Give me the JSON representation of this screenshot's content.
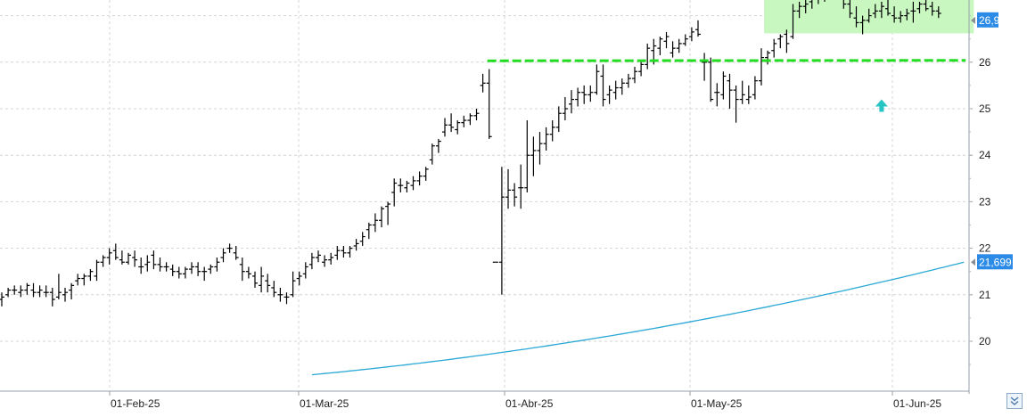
{
  "chart_data": {
    "type": "ohlc",
    "x_tick_labels": [
      "01-Feb-25",
      "01-Mar-25",
      "01-Abr-25",
      "01-May-25",
      "01-Jun-25"
    ],
    "y_tick_labels": [
      "20",
      "21",
      "22",
      "23",
      "24",
      "25",
      "26"
    ],
    "y_range": [
      19.3,
      27.5
    ],
    "grid": true,
    "price_series": {
      "color": "#000000",
      "bars": [
        [
          20.9,
          21.05,
          20.75,
          20.95
        ],
        [
          21.0,
          21.15,
          20.95,
          21.1
        ],
        [
          21.1,
          21.2,
          21.0,
          21.1
        ],
        [
          21.05,
          21.2,
          20.95,
          21.1
        ],
        [
          21.1,
          21.25,
          21.0,
          21.2
        ],
        [
          21.1,
          21.25,
          20.95,
          21.05
        ],
        [
          21.05,
          21.2,
          20.95,
          21.1
        ],
        [
          21.05,
          21.2,
          20.95,
          21.05
        ],
        [
          21.05,
          21.15,
          20.75,
          20.9
        ],
        [
          20.95,
          21.45,
          20.9,
          21.05
        ],
        [
          21.0,
          21.15,
          20.85,
          21.05
        ],
        [
          21.1,
          21.25,
          20.9,
          21.2
        ],
        [
          21.3,
          21.45,
          21.2,
          21.35
        ],
        [
          21.35,
          21.45,
          21.2,
          21.4
        ],
        [
          21.4,
          21.55,
          21.3,
          21.5
        ],
        [
          21.4,
          21.75,
          21.3,
          21.7
        ],
        [
          21.7,
          21.85,
          21.6,
          21.8
        ],
        [
          21.8,
          22.0,
          21.65,
          21.9
        ],
        [
          21.95,
          22.1,
          21.75,
          21.8
        ],
        [
          21.75,
          21.95,
          21.65,
          21.7
        ],
        [
          21.7,
          21.9,
          21.65,
          21.85
        ],
        [
          21.8,
          21.95,
          21.6,
          21.75
        ],
        [
          21.6,
          21.8,
          21.45,
          21.6
        ],
        [
          21.65,
          21.85,
          21.5,
          21.7
        ],
        [
          21.85,
          21.95,
          21.55,
          21.65
        ],
        [
          21.65,
          21.8,
          21.5,
          21.6
        ],
        [
          21.6,
          21.7,
          21.5,
          21.6
        ],
        [
          21.55,
          21.65,
          21.4,
          21.5
        ],
        [
          21.5,
          21.6,
          21.35,
          21.45
        ],
        [
          21.45,
          21.6,
          21.35,
          21.55
        ],
        [
          21.55,
          21.7,
          21.45,
          21.6
        ],
        [
          21.6,
          21.7,
          21.4,
          21.5
        ],
        [
          21.5,
          21.6,
          21.3,
          21.5
        ],
        [
          21.55,
          21.65,
          21.45,
          21.6
        ],
        [
          21.6,
          21.8,
          21.5,
          21.7
        ],
        [
          21.8,
          22.0,
          21.7,
          21.9
        ],
        [
          22.0,
          22.1,
          21.9,
          22.0
        ],
        [
          21.9,
          22.05,
          21.75,
          21.8
        ],
        [
          21.65,
          21.8,
          21.3,
          21.5
        ],
        [
          21.5,
          21.6,
          21.35,
          21.45
        ],
        [
          21.4,
          21.5,
          21.15,
          21.25
        ],
        [
          21.2,
          21.6,
          21.05,
          21.4
        ],
        [
          21.3,
          21.45,
          21.05,
          21.2
        ],
        [
          21.15,
          21.3,
          20.95,
          21.05
        ],
        [
          21.0,
          21.15,
          20.85,
          21.0
        ],
        [
          20.95,
          21.05,
          20.8,
          20.95
        ],
        [
          21.0,
          21.5,
          20.95,
          21.3
        ],
        [
          21.35,
          21.5,
          21.2,
          21.4
        ],
        [
          21.45,
          21.7,
          21.35,
          21.6
        ],
        [
          21.65,
          21.9,
          21.55,
          21.8
        ],
        [
          21.8,
          21.95,
          21.7,
          21.85
        ],
        [
          21.7,
          21.85,
          21.6,
          21.75
        ],
        [
          21.75,
          21.9,
          21.65,
          21.8
        ],
        [
          21.85,
          22.05,
          21.75,
          21.95
        ],
        [
          21.95,
          22.05,
          21.8,
          21.9
        ],
        [
          21.9,
          22.05,
          21.8,
          22.0
        ],
        [
          22.05,
          22.2,
          21.95,
          22.1
        ],
        [
          22.15,
          22.35,
          22.05,
          22.25
        ],
        [
          22.4,
          22.55,
          22.2,
          22.5
        ],
        [
          22.5,
          22.75,
          22.35,
          22.6
        ],
        [
          22.6,
          22.9,
          22.45,
          22.85
        ],
        [
          22.9,
          23.0,
          22.5,
          22.95
        ],
        [
          23.2,
          23.5,
          22.9,
          23.4
        ],
        [
          23.35,
          23.5,
          23.2,
          23.35
        ],
        [
          23.3,
          23.45,
          23.2,
          23.4
        ],
        [
          23.35,
          23.55,
          23.25,
          23.45
        ],
        [
          23.45,
          23.65,
          23.35,
          23.55
        ],
        [
          23.55,
          23.75,
          23.45,
          23.7
        ],
        [
          23.9,
          24.25,
          23.8,
          24.2
        ],
        [
          24.2,
          24.35,
          24.05,
          24.3
        ],
        [
          24.5,
          24.8,
          24.4,
          24.65
        ],
        [
          24.65,
          24.9,
          24.5,
          24.6
        ],
        [
          24.55,
          24.75,
          24.45,
          24.7
        ],
        [
          24.7,
          24.85,
          24.6,
          24.75
        ],
        [
          24.75,
          24.9,
          24.65,
          24.85
        ],
        [
          24.85,
          25.0,
          24.75,
          24.9
        ],
        [
          25.5,
          25.75,
          25.35,
          25.55
        ],
        [
          25.55,
          25.85,
          24.35,
          24.4
        ],
        [
          21.7,
          21.7,
          21.7,
          21.7
        ],
        [
          21.7,
          23.75,
          21.0,
          23.1
        ],
        [
          23.1,
          23.7,
          22.85,
          23.25
        ],
        [
          23.25,
          23.4,
          22.9,
          23.1
        ],
        [
          23.3,
          23.8,
          22.85,
          23.3
        ],
        [
          23.3,
          24.75,
          23.2,
          24.0
        ],
        [
          24.0,
          24.4,
          23.55,
          24.1
        ],
        [
          24.1,
          24.5,
          23.8,
          24.25
        ],
        [
          24.25,
          24.6,
          24.1,
          24.45
        ],
        [
          24.45,
          24.75,
          24.3,
          24.6
        ],
        [
          24.6,
          25.05,
          24.5,
          24.9
        ],
        [
          24.9,
          25.25,
          24.75,
          25.0
        ],
        [
          25.1,
          25.4,
          24.9,
          25.2
        ],
        [
          25.2,
          25.45,
          25.05,
          25.35
        ],
        [
          25.35,
          25.5,
          25.1,
          25.3
        ],
        [
          25.3,
          25.5,
          25.15,
          25.35
        ],
        [
          25.35,
          25.95,
          25.3,
          25.8
        ],
        [
          25.7,
          25.95,
          25.05,
          25.2
        ],
        [
          25.3,
          25.5,
          25.1,
          25.4
        ],
        [
          25.35,
          25.6,
          25.2,
          25.45
        ],
        [
          25.45,
          25.65,
          25.3,
          25.55
        ],
        [
          25.55,
          25.75,
          25.45,
          25.65
        ],
        [
          25.65,
          25.9,
          25.55,
          25.8
        ],
        [
          25.8,
          26.05,
          25.7,
          25.95
        ],
        [
          25.95,
          26.4,
          25.85,
          26.3
        ],
        [
          26.25,
          26.5,
          25.95,
          26.35
        ],
        [
          26.3,
          26.55,
          26.15,
          26.5
        ],
        [
          26.45,
          26.65,
          26.3,
          26.55
        ],
        [
          26.2,
          26.45,
          26.1,
          26.3
        ],
        [
          26.3,
          26.5,
          26.2,
          26.4
        ],
        [
          26.4,
          26.6,
          26.35,
          26.5
        ],
        [
          26.55,
          26.75,
          26.45,
          26.65
        ],
        [
          26.7,
          26.9,
          26.55,
          26.6
        ],
        [
          26.0,
          26.2,
          25.6,
          26.0
        ],
        [
          26.0,
          26.1,
          25.15,
          25.2
        ],
        [
          25.35,
          25.55,
          25.05,
          25.35
        ],
        [
          25.3,
          25.8,
          25.2,
          25.7
        ],
        [
          25.6,
          25.75,
          25.0,
          25.4
        ],
        [
          25.4,
          25.5,
          24.7,
          25.2
        ],
        [
          25.2,
          25.6,
          25.1,
          25.3
        ],
        [
          25.2,
          25.5,
          25.1,
          25.25
        ],
        [
          25.3,
          25.7,
          25.2,
          25.6
        ],
        [
          25.6,
          26.3,
          25.5,
          26.1
        ],
        [
          26.1,
          26.25,
          25.95,
          26.2
        ],
        [
          26.25,
          26.5,
          26.1,
          26.4
        ],
        [
          26.5,
          26.6,
          26.3,
          26.55
        ],
        [
          26.6,
          26.7,
          26.2,
          26.4
        ],
        [
          26.55,
          27.25,
          26.5,
          27.1
        ],
        [
          27.1,
          27.3,
          26.95,
          27.2
        ],
        [
          27.2,
          27.35,
          27.05,
          27.25
        ],
        [
          27.3,
          27.45,
          27.15,
          27.35
        ],
        [
          27.35,
          27.55,
          27.25,
          27.45
        ],
        [
          27.45,
          27.6,
          27.3,
          27.5
        ],
        [
          27.55,
          27.65,
          27.4,
          27.45
        ],
        [
          27.5,
          27.6,
          27.35,
          27.45
        ],
        [
          27.45,
          27.55,
          27.15,
          27.25
        ],
        [
          27.25,
          27.35,
          26.95,
          27.05
        ],
        [
          26.95,
          27.2,
          26.75,
          26.85
        ],
        [
          26.85,
          27.0,
          26.6,
          26.9
        ],
        [
          26.9,
          27.15,
          26.85,
          27.0
        ],
        [
          27.05,
          27.25,
          26.95,
          27.1
        ],
        [
          27.1,
          27.3,
          26.95,
          27.2
        ],
        [
          27.15,
          27.35,
          27.0,
          27.05
        ],
        [
          27.0,
          27.2,
          26.85,
          26.95
        ],
        [
          26.95,
          27.1,
          26.85,
          27.0
        ],
        [
          27.0,
          27.15,
          26.9,
          27.05
        ],
        [
          27.1,
          27.3,
          26.85,
          27.1
        ],
        [
          27.15,
          27.3,
          27.05,
          27.25
        ],
        [
          27.25,
          27.35,
          27.1,
          27.15
        ],
        [
          27.2,
          27.3,
          27.0,
          27.1
        ],
        [
          27.1,
          27.2,
          26.95,
          27.05
        ]
      ]
    },
    "moving_average": {
      "color": "#2aa8d6",
      "start_bar": 49,
      "end_bar": 152,
      "start_value": 19.28,
      "end_value": 21.699
    },
    "support_line": {
      "value": 26.03,
      "color": "#22dd22",
      "start_bar": 77,
      "end_bar": 152
    },
    "consolidation_box": {
      "start_bar": 121,
      "end_bar": 153,
      "low": 26.62,
      "high": 27.65,
      "color": "#c8f7c0",
      "border": "#22dd22"
    },
    "arrow_marker": {
      "bar": 139,
      "value": 25.2,
      "color": "#27c4c4"
    },
    "last_price": {
      "label": "26,9",
      "color": "#2b8be6"
    },
    "ma_last": {
      "label": "21,699",
      "color": "#2b8be6"
    }
  }
}
